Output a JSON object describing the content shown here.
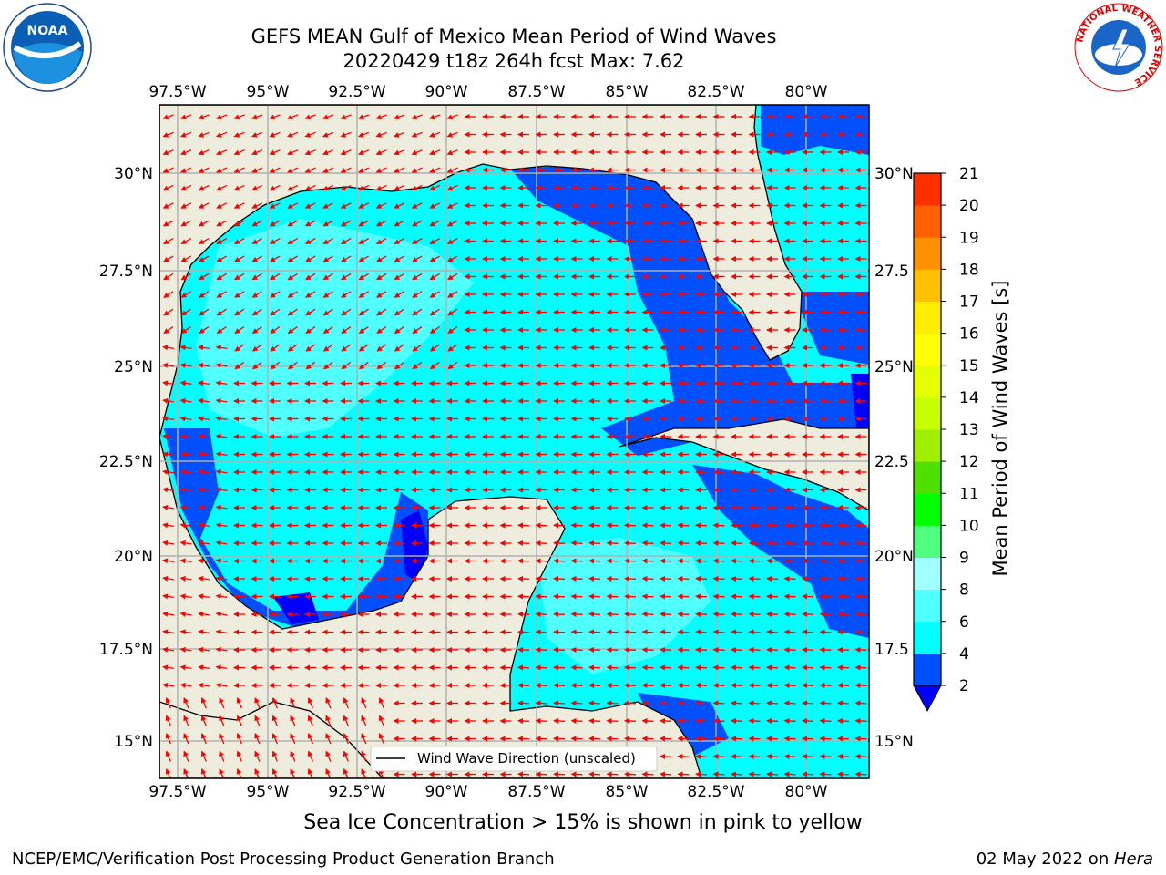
{
  "header": {
    "title_line1": "GEFS MEAN Gulf of Mexico Mean Period of Wind Waves",
    "title_line2": "20220429 t18z 264h fcst   Max: 7.62"
  },
  "logos": {
    "left": {
      "name": "noaa-logo",
      "text": "NOAA"
    },
    "right": {
      "name": "nws-logo",
      "text": "NATIONAL WEATHER SERVICE"
    }
  },
  "map": {
    "lon_labels": [
      "97.5°W",
      "95°W",
      "92.5°W",
      "90°W",
      "87.5°W",
      "85°W",
      "82.5°W",
      "80°W"
    ],
    "lat_labels_left": [
      "30°N",
      "27.5°N",
      "25°N",
      "22.5°N",
      "20°N",
      "17.5°N",
      "15°N"
    ],
    "lat_labels_right": [
      "30°N",
      "27.5",
      "25°N",
      "22.5",
      "20°N",
      "17.5",
      "15°N"
    ],
    "legend_label": "Wind Wave Direction (unscaled)",
    "colors": {
      "land": "#eeecdc",
      "coast": "#000000",
      "arrow": "#ff0000",
      "grid": "#b0b0b0"
    }
  },
  "colorbar": {
    "label": "Mean Period of Wind Waves [s]",
    "ticks": [
      "2",
      "4",
      "6",
      "8",
      "9",
      "10",
      "11",
      "12",
      "13",
      "14",
      "15",
      "16",
      "17",
      "18",
      "19",
      "20",
      "21"
    ],
    "colors": [
      "#0050ff",
      "#00ffff",
      "#50ffff",
      "#a0ffff",
      "#50ff80",
      "#00ff00",
      "#50e000",
      "#a0ee00",
      "#c8ff00",
      "#e6ff00",
      "#ffff00",
      "#ffee00",
      "#ffc000",
      "#ff9000",
      "#ff6000",
      "#ff3000",
      "#ff0000"
    ],
    "under_color": "#0000ff"
  },
  "caption": "Sea Ice Concentration > 15% is shown in pink to yellow",
  "footer": {
    "left": "NCEP/EMC/Verification Post Processing Product Generation Branch",
    "right_prefix": "02 May 2022 on ",
    "right_italic": "Hera"
  }
}
